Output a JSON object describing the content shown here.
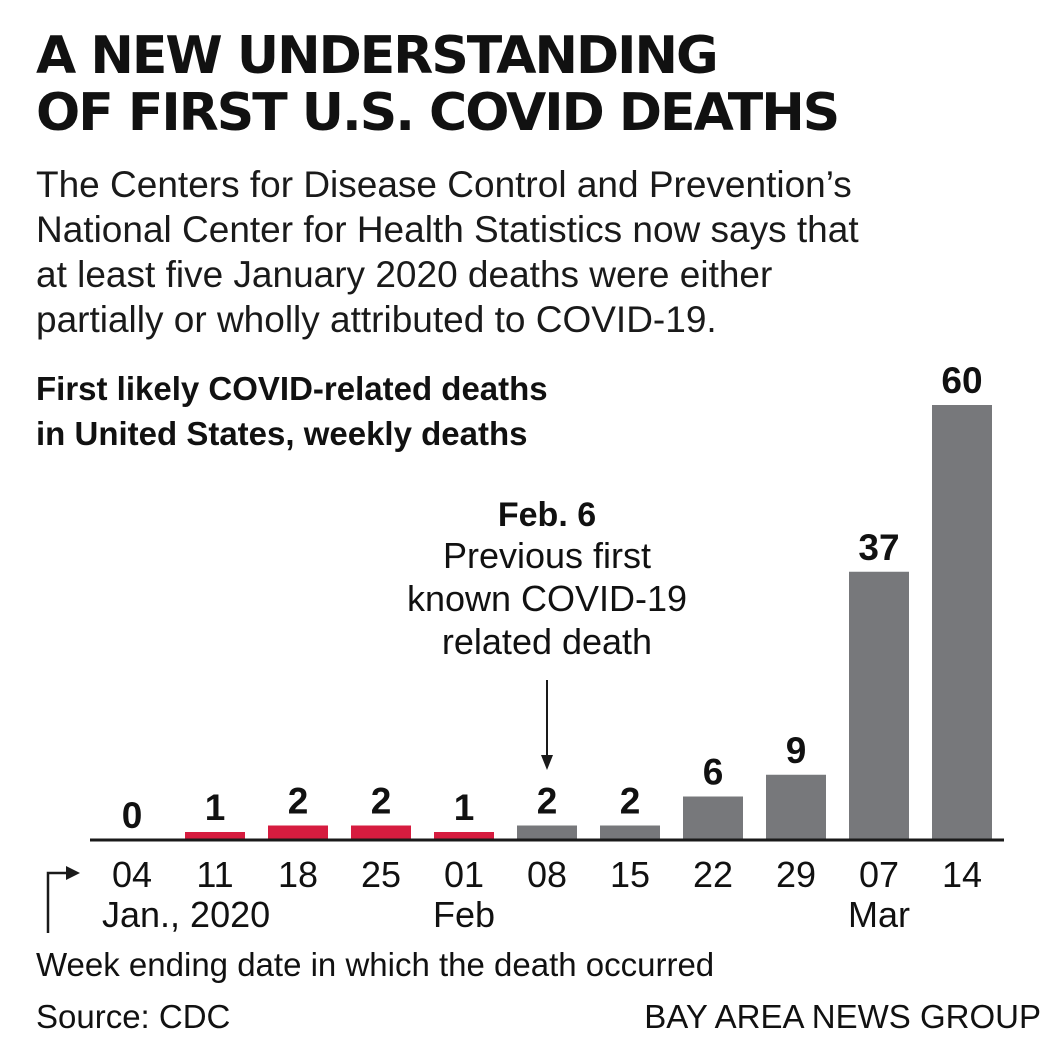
{
  "headline": {
    "line1": "A NEW UNDERSTANDING",
    "line2": "OF FIRST U.S. COVID DEATHS"
  },
  "dek": {
    "line1": "The Centers for Disease Control and Prevention’s",
    "line2": "National Center for Health Statistics now says that",
    "line3": "at least five January 2020 deaths were either",
    "line4": "partially or wholly attributed to COVID-19."
  },
  "chart_data": {
    "type": "bar",
    "title": "First likely COVID-related deaths in United States, weekly deaths",
    "title_lines": [
      "First likely COVID-related deaths",
      "in United States, weekly deaths"
    ],
    "categories": [
      "04",
      "11",
      "18",
      "25",
      "01",
      "08",
      "15",
      "22",
      "29",
      "07",
      "14"
    ],
    "month_labels": [
      "Jan., 2020",
      "Feb",
      "Mar"
    ],
    "values": [
      0,
      1,
      2,
      2,
      1,
      2,
      2,
      6,
      9,
      37,
      60
    ],
    "highlight": [
      false,
      true,
      true,
      true,
      true,
      false,
      false,
      false,
      false,
      false,
      false
    ],
    "colors": {
      "highlight": "#d61c3f",
      "default": "#77787b",
      "axis": "#1a1a1a",
      "text": "#111111"
    },
    "annotation": {
      "category": "08",
      "heading": "Feb. 6",
      "lines": [
        "Previous first",
        "known COVID-19",
        "related death"
      ]
    },
    "xlabel": "Week ending date in which the death occurred",
    "ylim": [
      0,
      60
    ],
    "grid": false,
    "legend": "none"
  },
  "footer": {
    "source": "Source: CDC",
    "credit": "BAY AREA NEWS GROUP"
  }
}
